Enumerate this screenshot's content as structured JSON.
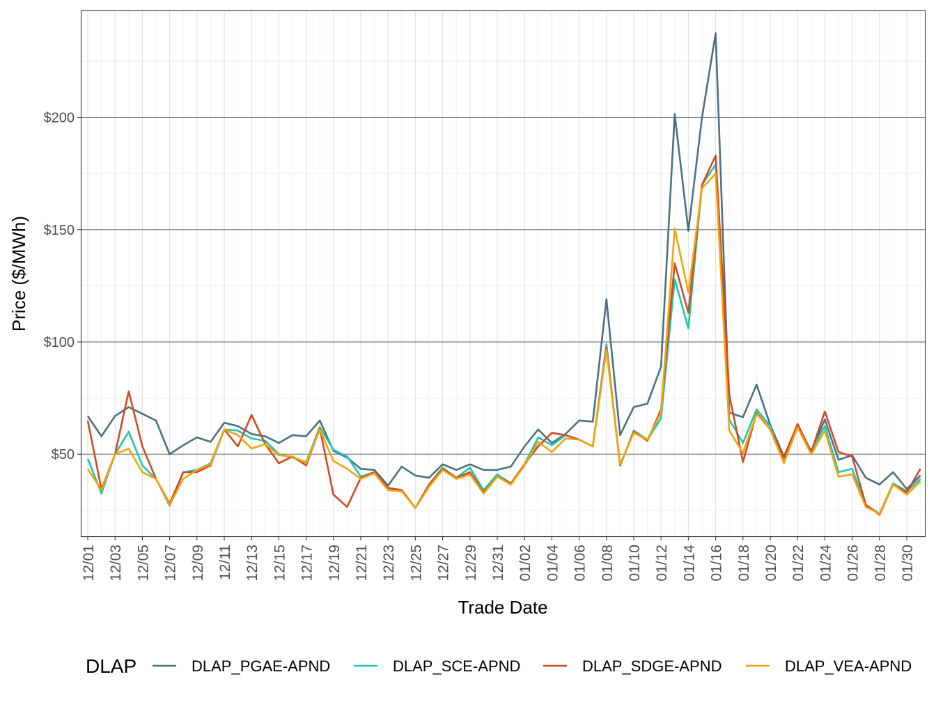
{
  "chart_data": {
    "type": "line",
    "title": "",
    "xlabel": "Trade Date",
    "ylabel": "Price ($/MWh)",
    "ylim": [
      15,
      245
    ],
    "yticks": [
      50,
      100,
      150,
      200
    ],
    "ytick_labels": [
      "$50",
      "$100",
      "$150",
      "$200"
    ],
    "x": [
      "12/01",
      "12/02",
      "12/03",
      "12/04",
      "12/05",
      "12/06",
      "12/07",
      "12/08",
      "12/09",
      "12/10",
      "12/11",
      "12/12",
      "12/13",
      "12/14",
      "12/15",
      "12/16",
      "12/17",
      "12/18",
      "12/19",
      "12/20",
      "12/21",
      "12/22",
      "12/23",
      "12/24",
      "12/25",
      "12/26",
      "12/27",
      "12/28",
      "12/29",
      "12/30",
      "12/31",
      "01/01",
      "01/02",
      "01/03",
      "01/04",
      "01/05",
      "01/06",
      "01/07",
      "01/08",
      "01/09",
      "01/10",
      "01/11",
      "01/12",
      "01/13",
      "01/14",
      "01/15",
      "01/16",
      "01/17",
      "01/18",
      "01/19",
      "01/20",
      "01/21",
      "01/22",
      "01/23",
      "01/24",
      "01/25",
      "01/26",
      "01/27",
      "01/28",
      "01/29",
      "01/30",
      "01/31"
    ],
    "xtick_labels": [
      "12/01",
      "12/03",
      "12/05",
      "12/07",
      "12/09",
      "12/11",
      "12/13",
      "12/15",
      "12/17",
      "12/19",
      "12/21",
      "12/23",
      "12/25",
      "12/27",
      "12/29",
      "12/31",
      "01/02",
      "01/04",
      "01/06",
      "01/08",
      "01/10",
      "01/12",
      "01/14",
      "01/16",
      "01/18",
      "01/20",
      "01/22",
      "01/24",
      "01/26",
      "01/28",
      "01/30"
    ],
    "grid": true,
    "legend_title": "DLAP",
    "legend_position": "bottom",
    "series": [
      {
        "name": "DLAP_PGAE-APND",
        "color": "#4a7180",
        "values": [
          67,
          58,
          67,
          71,
          68,
          65,
          50,
          54,
          57.5,
          55.5,
          64,
          62.5,
          59,
          58,
          55,
          58.5,
          58,
          65,
          51.5,
          48.5,
          43.5,
          43,
          36,
          44.5,
          40.5,
          39.5,
          45.5,
          43,
          45.5,
          43,
          43,
          44.5,
          53.5,
          61,
          55,
          59,
          65,
          64.5,
          119,
          58.5,
          71,
          72.5,
          89,
          201.5,
          149.5,
          200,
          237.5,
          68.5,
          66.5,
          81,
          63,
          49,
          63,
          51,
          65.5,
          47.5,
          49.5,
          39.5,
          36.5,
          42,
          34.5,
          40.5
        ]
      },
      {
        "name": "DLAP_SCE-APND",
        "color": "#1cc6b6",
        "values": [
          48,
          32.5,
          50,
          60,
          45,
          39,
          27,
          42,
          43,
          46,
          61,
          60.5,
          57,
          56,
          50,
          48.5,
          46.5,
          62,
          52,
          49,
          40,
          42,
          35,
          34,
          26,
          36.5,
          44,
          39.5,
          44,
          34,
          41,
          37,
          45.5,
          57.5,
          54,
          58.5,
          56.5,
          53.5,
          99,
          45,
          60.5,
          56.5,
          66,
          128,
          106,
          170,
          179,
          65.5,
          55,
          70,
          62.5,
          46.5,
          62.5,
          51.5,
          62.5,
          42,
          43.5,
          27.5,
          23.5,
          37,
          33.5,
          39
        ]
      },
      {
        "name": "DLAP_SDGE-APND",
        "color": "#d04a25",
        "values": [
          65,
          34.5,
          50,
          78,
          53.5,
          39,
          28,
          42,
          42,
          45,
          61,
          53.5,
          67.5,
          54.5,
          46,
          49,
          45,
          61.5,
          32,
          26.5,
          39.5,
          42,
          35,
          34,
          26,
          36.5,
          43.5,
          39.5,
          42,
          33,
          40,
          37,
          45.5,
          53.5,
          59.5,
          58.5,
          56.5,
          53.5,
          97.5,
          45,
          60,
          56,
          70,
          135,
          113,
          170,
          183,
          76.5,
          46.5,
          68.5,
          61,
          48.5,
          63.5,
          51,
          69,
          51,
          49,
          27.5,
          23,
          36.5,
          33,
          43.5
        ]
      },
      {
        "name": "DLAP_VEA-APND",
        "color": "#f5a30c",
        "values": [
          43.5,
          34,
          50,
          52.5,
          42,
          39,
          27.5,
          39,
          43,
          45.5,
          61,
          58.5,
          52.5,
          54.5,
          49.5,
          49,
          46,
          61,
          47,
          43.5,
          39,
          41.5,
          34,
          33.5,
          26,
          35.5,
          43,
          39,
          41,
          32.5,
          40,
          36.5,
          45,
          55.5,
          51,
          57,
          56.5,
          53.5,
          96.5,
          45.5,
          59.5,
          56.5,
          68.5,
          150.5,
          122,
          168.5,
          175,
          60.5,
          50.5,
          68,
          61,
          46,
          62,
          50,
          60.5,
          40,
          41,
          26.5,
          23.5,
          36.5,
          32,
          38
        ]
      }
    ]
  }
}
